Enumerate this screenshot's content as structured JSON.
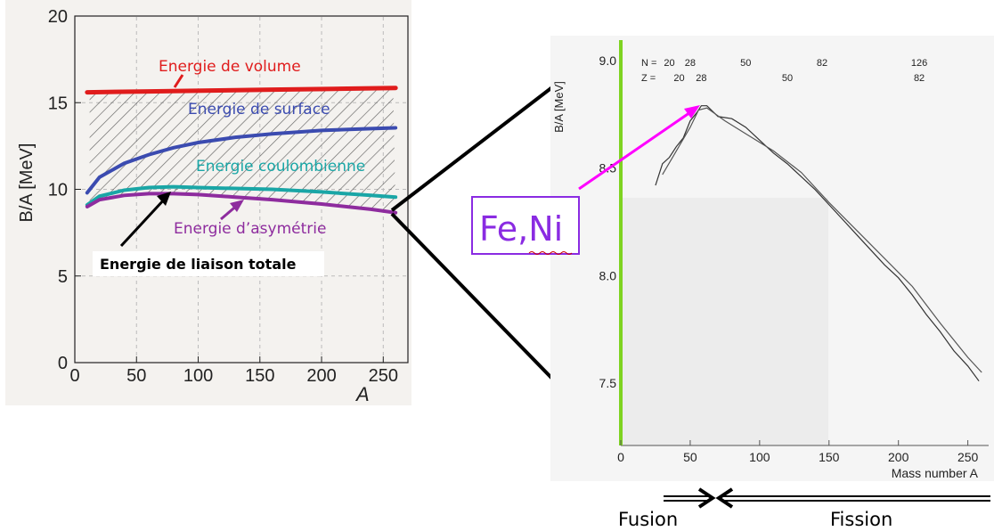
{
  "chart_data": [
    {
      "type": "line",
      "xlabel": "A",
      "ylabel": "B/A [MeV]",
      "xlim": [
        0,
        270
      ],
      "ylim": [
        0,
        20
      ],
      "xticks": [
        0,
        50,
        100,
        150,
        200,
        250
      ],
      "yticks": [
        0,
        5,
        10,
        15,
        20
      ],
      "hatched_region": "between volume and surface-corrected curves",
      "series": [
        {
          "name": "Energie de volume",
          "color": "#e01c1c",
          "x": [
            10,
            60,
            110,
            160,
            210,
            260
          ],
          "y": [
            15.6,
            15.65,
            15.7,
            15.75,
            15.8,
            15.85
          ]
        },
        {
          "name": "Energie de surface",
          "color": "#3b4bb0",
          "x": [
            10,
            20,
            40,
            60,
            80,
            100,
            130,
            160,
            200,
            240,
            260
          ],
          "y": [
            9.8,
            10.7,
            11.5,
            12.0,
            12.4,
            12.7,
            13.0,
            13.2,
            13.4,
            13.5,
            13.55
          ]
        },
        {
          "name": "Energie coulombienne",
          "color": "#1aa6a6",
          "x": [
            10,
            20,
            40,
            60,
            80,
            100,
            130,
            160,
            200,
            240,
            260
          ],
          "y": [
            9.1,
            9.6,
            9.95,
            10.1,
            10.15,
            10.1,
            10.05,
            10.0,
            9.85,
            9.65,
            9.55
          ]
        },
        {
          "name": "Energie d'asymétrie",
          "color": "#8e2c9e",
          "x": [
            10,
            20,
            40,
            60,
            80,
            100,
            130,
            160,
            200,
            240,
            260
          ],
          "y": [
            9.0,
            9.4,
            9.65,
            9.75,
            9.75,
            9.7,
            9.55,
            9.4,
            9.15,
            8.85,
            8.65
          ]
        }
      ],
      "annotations": [
        {
          "text": "Energie de volume",
          "color": "#e01c1c"
        },
        {
          "text": "Energie de surface",
          "color": "#3b4bb0"
        },
        {
          "text": "Energie coulombienne",
          "color": "#1aa6a6"
        },
        {
          "text": "Energie d’asymétrie",
          "color": "#8e2c9e"
        },
        {
          "text": "Energie de liaison totale",
          "color": "#000000"
        }
      ]
    },
    {
      "type": "line",
      "xlabel": "Mass number A",
      "ylabel": "B/A [MeV]",
      "xlim": [
        0,
        265
      ],
      "ylim": [
        7.2,
        9.1
      ],
      "xticks": [
        0,
        50,
        100,
        150,
        200,
        250
      ],
      "ytick_labels": [
        "9.0",
        "8.5",
        "8.0",
        "7.5"
      ],
      "ytick_values": [
        9.0,
        8.5,
        8.0,
        7.5
      ],
      "magic_numbers": {
        "N": {
          "label": "N = 20",
          "values": [
            "20",
            "28",
            "50",
            "82",
            "126"
          ],
          "positions_A": [
            35,
            50,
            90,
            145,
            215
          ]
        },
        "Z": {
          "label": "Z =",
          "values": [
            "20",
            "28",
            "50",
            "82"
          ],
          "positions_A": [
            42,
            58,
            120,
            215
          ]
        }
      },
      "series": [
        {
          "name": "",
          "color": "#333333",
          "x": [
            25,
            30,
            35,
            40,
            45,
            50,
            55,
            58,
            62,
            70,
            80,
            90,
            100,
            110,
            120,
            130,
            140,
            150,
            160,
            170,
            180,
            190,
            200,
            210,
            220,
            230,
            240,
            250,
            258
          ],
          "y": [
            8.42,
            8.52,
            8.55,
            8.6,
            8.64,
            8.72,
            8.76,
            8.79,
            8.79,
            8.74,
            8.73,
            8.69,
            8.63,
            8.57,
            8.52,
            8.46,
            8.4,
            8.33,
            8.26,
            8.19,
            8.12,
            8.05,
            7.99,
            7.91,
            7.82,
            7.74,
            7.65,
            7.58,
            7.51
          ]
        },
        {
          "name": "",
          "color": "#555555",
          "x": [
            30,
            40,
            50,
            56,
            62,
            75,
            90,
            110,
            130,
            150,
            170,
            190,
            210,
            230,
            250,
            260
          ],
          "y": [
            8.47,
            8.58,
            8.69,
            8.77,
            8.78,
            8.72,
            8.66,
            8.58,
            8.48,
            8.34,
            8.21,
            8.08,
            7.95,
            7.78,
            7.62,
            7.55
          ]
        }
      ],
      "annotations": [
        {
          "text": "Fe,Ni",
          "color": "#8a2be2"
        }
      ]
    }
  ],
  "bottom": {
    "fusion_label": "Fusion",
    "fission_label": "Fission"
  }
}
